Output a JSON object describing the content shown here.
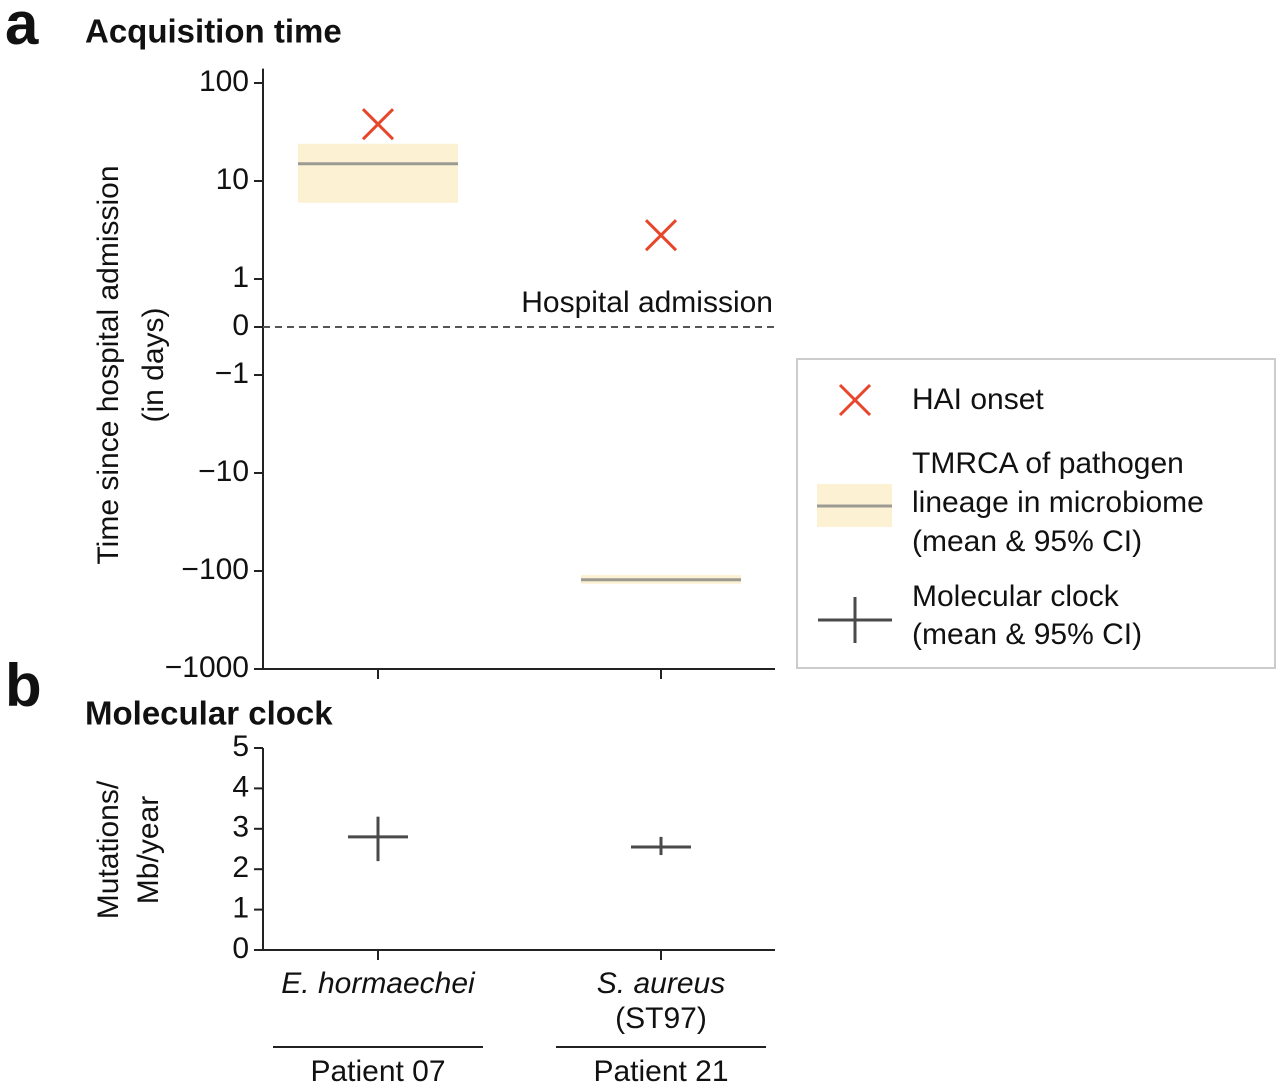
{
  "chart_data": [
    {
      "panel": "a",
      "type": "interval",
      "title": "Acquisition time",
      "ylabel": [
        "Time since hospital admission",
        "(in days)"
      ],
      "yscale": "symlog",
      "ylim": [
        -1000,
        140
      ],
      "yticks": [
        100,
        10,
        1,
        0,
        {
          "value": -1,
          "label": "−1"
        },
        {
          "value": -10,
          "label": "−10"
        },
        {
          "value": -100,
          "label": "−100"
        },
        {
          "value": -1000,
          "label": "−1000"
        }
      ],
      "reference_line": {
        "value": 0,
        "label": "Hospital admission"
      },
      "series": [
        {
          "name": [
            "HAI onset"
          ],
          "color": "#e8462a",
          "marker": "x",
          "values": [
            38,
            2.8
          ]
        },
        {
          "name": [
            "TMRCA of pathogen",
            "lineage in microbiome",
            "(mean & 95% CI)"
          ],
          "color": "#9b9b94",
          "band_color": "#fcf1d2",
          "values": [
            15,
            -123
          ],
          "lower": [
            6,
            -135
          ],
          "upper": [
            24,
            -110
          ]
        }
      ]
    },
    {
      "panel": "b",
      "type": "errorbar",
      "title": "Molecular clock",
      "ylabel": [
        "Mutations/",
        "Mb/year"
      ],
      "ylim": [
        0,
        5
      ],
      "yticks": [
        0,
        1,
        2,
        3,
        4,
        5
      ],
      "categories": [
        [
          "E. hormaechei"
        ],
        [
          "S. aureus",
          "(ST97)"
        ]
      ],
      "groups": [
        "Patient 07",
        "Patient 21"
      ],
      "series": [
        {
          "name": [
            "Molecular clock",
            "(mean & 95% CI)"
          ],
          "color": "#4a4a4a",
          "values": [
            2.8,
            2.55
          ],
          "lower": [
            2.2,
            2.35
          ],
          "upper": [
            3.3,
            2.8
          ]
        }
      ]
    }
  ]
}
